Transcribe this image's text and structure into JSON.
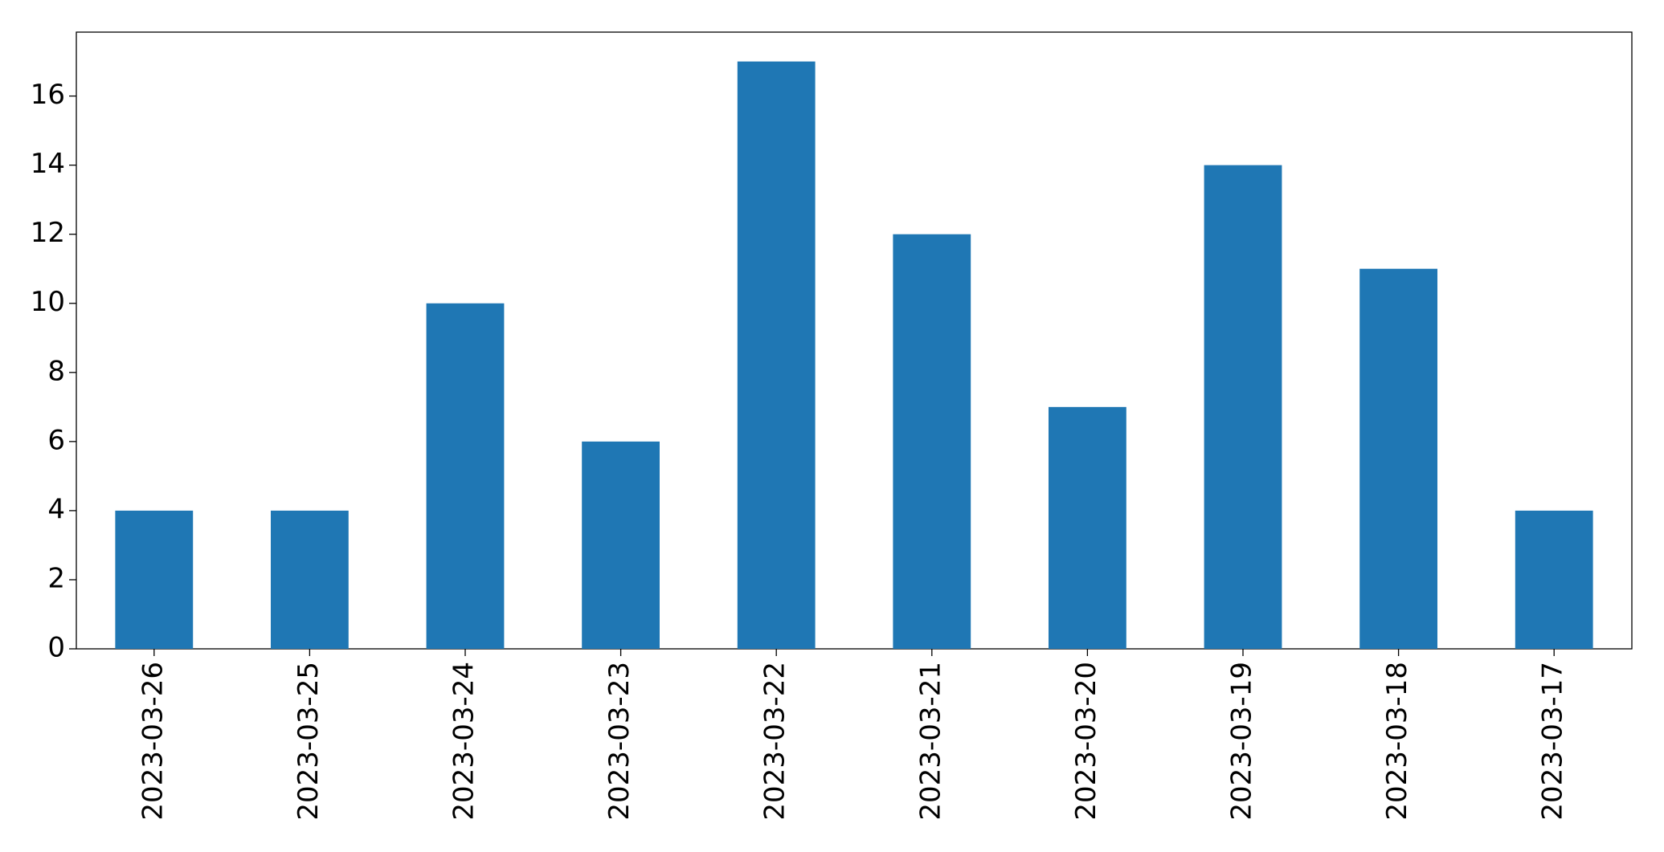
{
  "chart_data": {
    "type": "bar",
    "categories": [
      "2023-03-26",
      "2023-03-25",
      "2023-03-24",
      "2023-03-23",
      "2023-03-22",
      "2023-03-21",
      "2023-03-20",
      "2023-03-19",
      "2023-03-18",
      "2023-03-17"
    ],
    "values": [
      4,
      4,
      10,
      6,
      17,
      12,
      7,
      14,
      11,
      4
    ],
    "color": "#1f77b4",
    "ylim": [
      0,
      17.85
    ],
    "yticks": [
      0,
      2,
      4,
      6,
      8,
      10,
      12,
      14,
      16
    ],
    "grid": false
  }
}
